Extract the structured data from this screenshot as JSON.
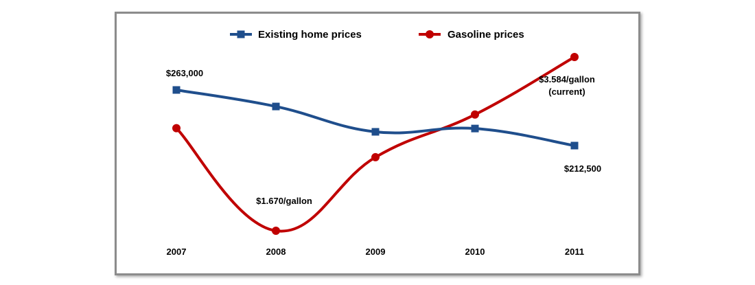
{
  "chart_data": {
    "type": "line",
    "categories": [
      "2007",
      "2008",
      "2009",
      "2010",
      "2011"
    ],
    "series": [
      {
        "name": "Existing home prices",
        "color": "#1f4e8c",
        "marker": "square",
        "values": [
          263000,
          248000,
          225000,
          228000,
          212500
        ]
      },
      {
        "name": "Gasoline prices",
        "color": "#c00000",
        "marker": "circle",
        "values": [
          2.8,
          1.67,
          2.48,
          2.95,
          3.584
        ]
      }
    ],
    "annotations": [
      {
        "series": 0,
        "point": 0,
        "text": "$263,000"
      },
      {
        "series": 0,
        "point": 4,
        "text": "$212,500"
      },
      {
        "series": 1,
        "point": 1,
        "text": "$1.670/gallon"
      },
      {
        "series": 1,
        "point": 4,
        "text": "$3.584/gallon",
        "text2": "(current)"
      }
    ],
    "legend_position": "top-center",
    "grid": false,
    "y_axis_visible": false
  }
}
